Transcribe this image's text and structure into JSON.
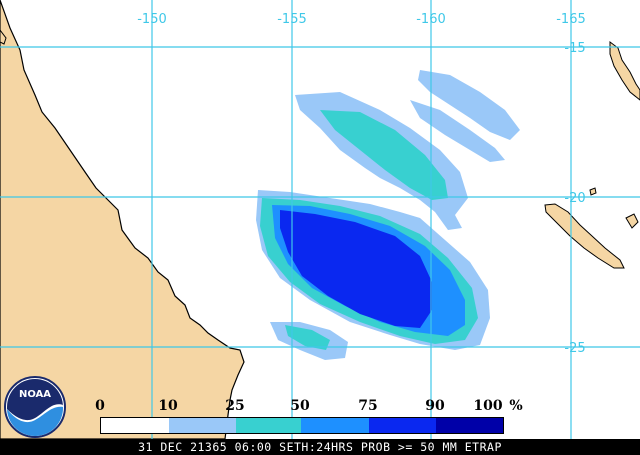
{
  "map": {
    "longitude_labels": [
      "-150",
      "-155",
      "-160",
      "-165"
    ],
    "latitude_labels": [
      "-15",
      "-20",
      "-25"
    ],
    "colors": {
      "land": "#f5d6a4",
      "coast": "#000000",
      "grid": "#3fc8e8"
    }
  },
  "legend": {
    "ticks": [
      "0",
      "10",
      "25",
      "50",
      "75",
      "90",
      "100"
    ],
    "unit": "%",
    "bands": [
      {
        "from": "0",
        "to": "10",
        "color": "#ffffff"
      },
      {
        "from": "10",
        "to": "25",
        "color": "#9ac8f8"
      },
      {
        "from": "25",
        "to": "50",
        "color": "#38d0d0"
      },
      {
        "from": "50",
        "to": "75",
        "color": "#1e90ff"
      },
      {
        "from": "75",
        "to": "90",
        "color": "#0a28f0"
      },
      {
        "from": "90",
        "to": "100",
        "color": "#0000a8"
      }
    ]
  },
  "footer": {
    "text": "31 DEC 21365 06:00 SETH:24HRS PROB >= 50 MM ETRAP"
  },
  "logo": {
    "text": "NOAA",
    "icon": "noaa-logo-icon"
  }
}
